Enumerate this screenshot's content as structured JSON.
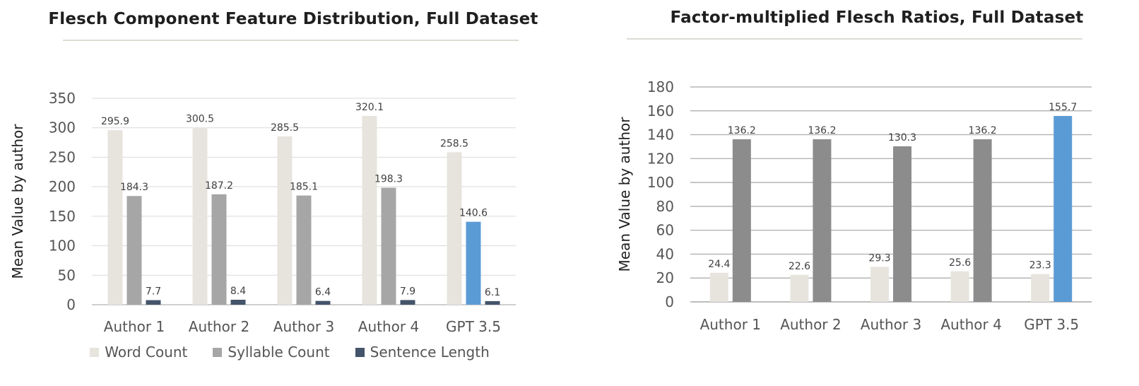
{
  "chart_data": [
    {
      "type": "bar",
      "title": "Flesch Component Feature Distribution, Full Dataset",
      "ylabel": "Mean Value by author",
      "xlabel": "",
      "categories": [
        "Author 1",
        "Author 2",
        "Author 3",
        "Author 4",
        "GPT 3.5"
      ],
      "ylim": [
        0,
        350
      ],
      "yticks": [
        0,
        50,
        100,
        150,
        200,
        250,
        300,
        350
      ],
      "grid": true,
      "legend": "bottom",
      "highlight_category": "GPT 3.5",
      "highlight_series": "Syllable Count",
      "highlight_color": "#5b9bd5",
      "series": [
        {
          "name": "Word Count",
          "color": "#e7e4de",
          "values": [
            295.9,
            300.5,
            285.5,
            320.1,
            258.5
          ]
        },
        {
          "name": "Syllable Count",
          "color": "#a6a6a6",
          "values": [
            184.3,
            187.2,
            185.1,
            198.3,
            140.6
          ]
        },
        {
          "name": "Sentence Length",
          "color": "#44546a",
          "values": [
            7.7,
            8.4,
            6.4,
            7.9,
            6.1
          ]
        }
      ]
    },
    {
      "type": "bar",
      "title": "Factor-multiplied Flesch Ratios, Full Dataset",
      "ylabel": "Mean Value by author",
      "xlabel": "",
      "categories": [
        "Author 1",
        "Author 2",
        "Author 3",
        "Author 4",
        "GPT 3.5"
      ],
      "ylim": [
        0,
        180
      ],
      "yticks": [
        0,
        20,
        40,
        60,
        80,
        100,
        120,
        140,
        160,
        180
      ],
      "grid": true,
      "legend": "none",
      "highlight_category": "GPT 3.5",
      "highlight_series": "s1",
      "highlight_color": "#5b9bd5",
      "series": [
        {
          "name": "",
          "color": "#e7e4de",
          "values": [
            24.4,
            22.6,
            29.3,
            25.6,
            23.3
          ]
        },
        {
          "name": "",
          "color": "#8c8c8c",
          "values": [
            136.2,
            136.2,
            130.3,
            136.2,
            155.7
          ]
        }
      ]
    }
  ]
}
